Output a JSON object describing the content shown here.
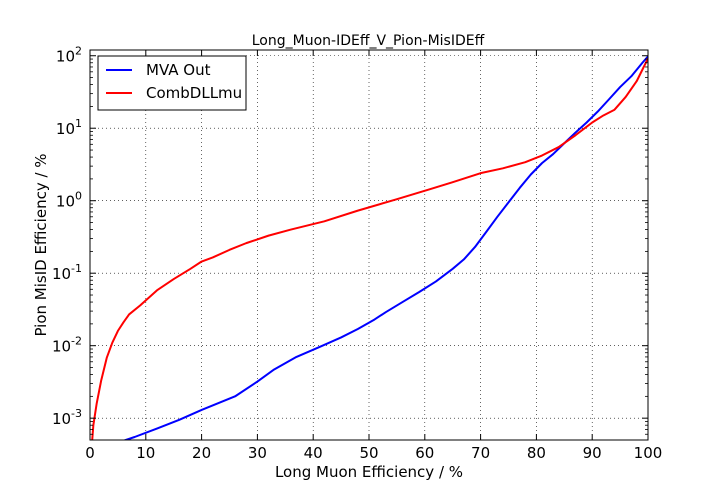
{
  "chart_data": {
    "type": "line",
    "title": "Long_Muon-IDEff_V_Pion-MisIDEff",
    "xlabel": "Long Muon Efficiency / %",
    "ylabel": "Pion MisID Efficiency / %",
    "xlim": [
      0,
      100
    ],
    "ylim": [
      0.0005,
      120
    ],
    "yscale": "log",
    "grid": true,
    "legend_position": "top-left",
    "x_ticks": [
      "0",
      "10",
      "20",
      "30",
      "40",
      "50",
      "60",
      "70",
      "80",
      "90",
      "100"
    ],
    "y_ticks": [
      {
        "value": 0.001,
        "base": "10",
        "exp": "-3"
      },
      {
        "value": 0.01,
        "base": "10",
        "exp": "-2"
      },
      {
        "value": 0.1,
        "base": "10",
        "exp": "-1"
      },
      {
        "value": 1,
        "base": "10",
        "exp": "0"
      },
      {
        "value": 10,
        "base": "10",
        "exp": "1"
      },
      {
        "value": 100,
        "base": "10",
        "exp": "2"
      }
    ],
    "series": [
      {
        "name": "MVA Out",
        "color": "#0000ff",
        "points": [
          [
            5,
            0.00046
          ],
          [
            8,
            0.00055
          ],
          [
            12,
            0.00072
          ],
          [
            16,
            0.00095
          ],
          [
            20,
            0.0013
          ],
          [
            26,
            0.002
          ],
          [
            30,
            0.0032
          ],
          [
            33,
            0.0047
          ],
          [
            37,
            0.007
          ],
          [
            41,
            0.0095
          ],
          [
            45,
            0.013
          ],
          [
            48,
            0.017
          ],
          [
            51,
            0.023
          ],
          [
            53,
            0.029
          ],
          [
            56,
            0.04
          ],
          [
            59,
            0.055
          ],
          [
            62,
            0.077
          ],
          [
            65,
            0.115
          ],
          [
            67,
            0.155
          ],
          [
            69,
            0.23
          ],
          [
            71,
            0.37
          ],
          [
            73,
            0.6
          ],
          [
            75,
            0.95
          ],
          [
            77,
            1.5
          ],
          [
            79,
            2.3
          ],
          [
            81,
            3.3
          ],
          [
            83,
            4.4
          ],
          [
            85,
            6.2
          ],
          [
            87,
            8.7
          ],
          [
            89,
            12
          ],
          [
            91,
            17
          ],
          [
            93,
            25
          ],
          [
            95,
            37
          ],
          [
            97,
            52
          ],
          [
            99,
            80
          ],
          [
            100,
            98
          ]
        ]
      },
      {
        "name": "CombDLLmu",
        "color": "#ff0000",
        "points": [
          [
            0.3,
            0.0004
          ],
          [
            0.6,
            0.0008
          ],
          [
            1.2,
            0.0016
          ],
          [
            2,
            0.0033
          ],
          [
            3,
            0.0068
          ],
          [
            4,
            0.011
          ],
          [
            5,
            0.016
          ],
          [
            6,
            0.021
          ],
          [
            7,
            0.027
          ],
          [
            9,
            0.036
          ],
          [
            12,
            0.058
          ],
          [
            15,
            0.083
          ],
          [
            18,
            0.115
          ],
          [
            20,
            0.145
          ],
          [
            22,
            0.165
          ],
          [
            25,
            0.21
          ],
          [
            28,
            0.26
          ],
          [
            32,
            0.33
          ],
          [
            36,
            0.4
          ],
          [
            42,
            0.52
          ],
          [
            48,
            0.73
          ],
          [
            55,
            1.05
          ],
          [
            61,
            1.45
          ],
          [
            65,
            1.8
          ],
          [
            70,
            2.4
          ],
          [
            74,
            2.8
          ],
          [
            78,
            3.4
          ],
          [
            81,
            4.2
          ],
          [
            84,
            5.5
          ],
          [
            87,
            8.0
          ],
          [
            90,
            12
          ],
          [
            92,
            15
          ],
          [
            94,
            18
          ],
          [
            96,
            27
          ],
          [
            98,
            45
          ],
          [
            100,
            92
          ]
        ]
      }
    ]
  }
}
